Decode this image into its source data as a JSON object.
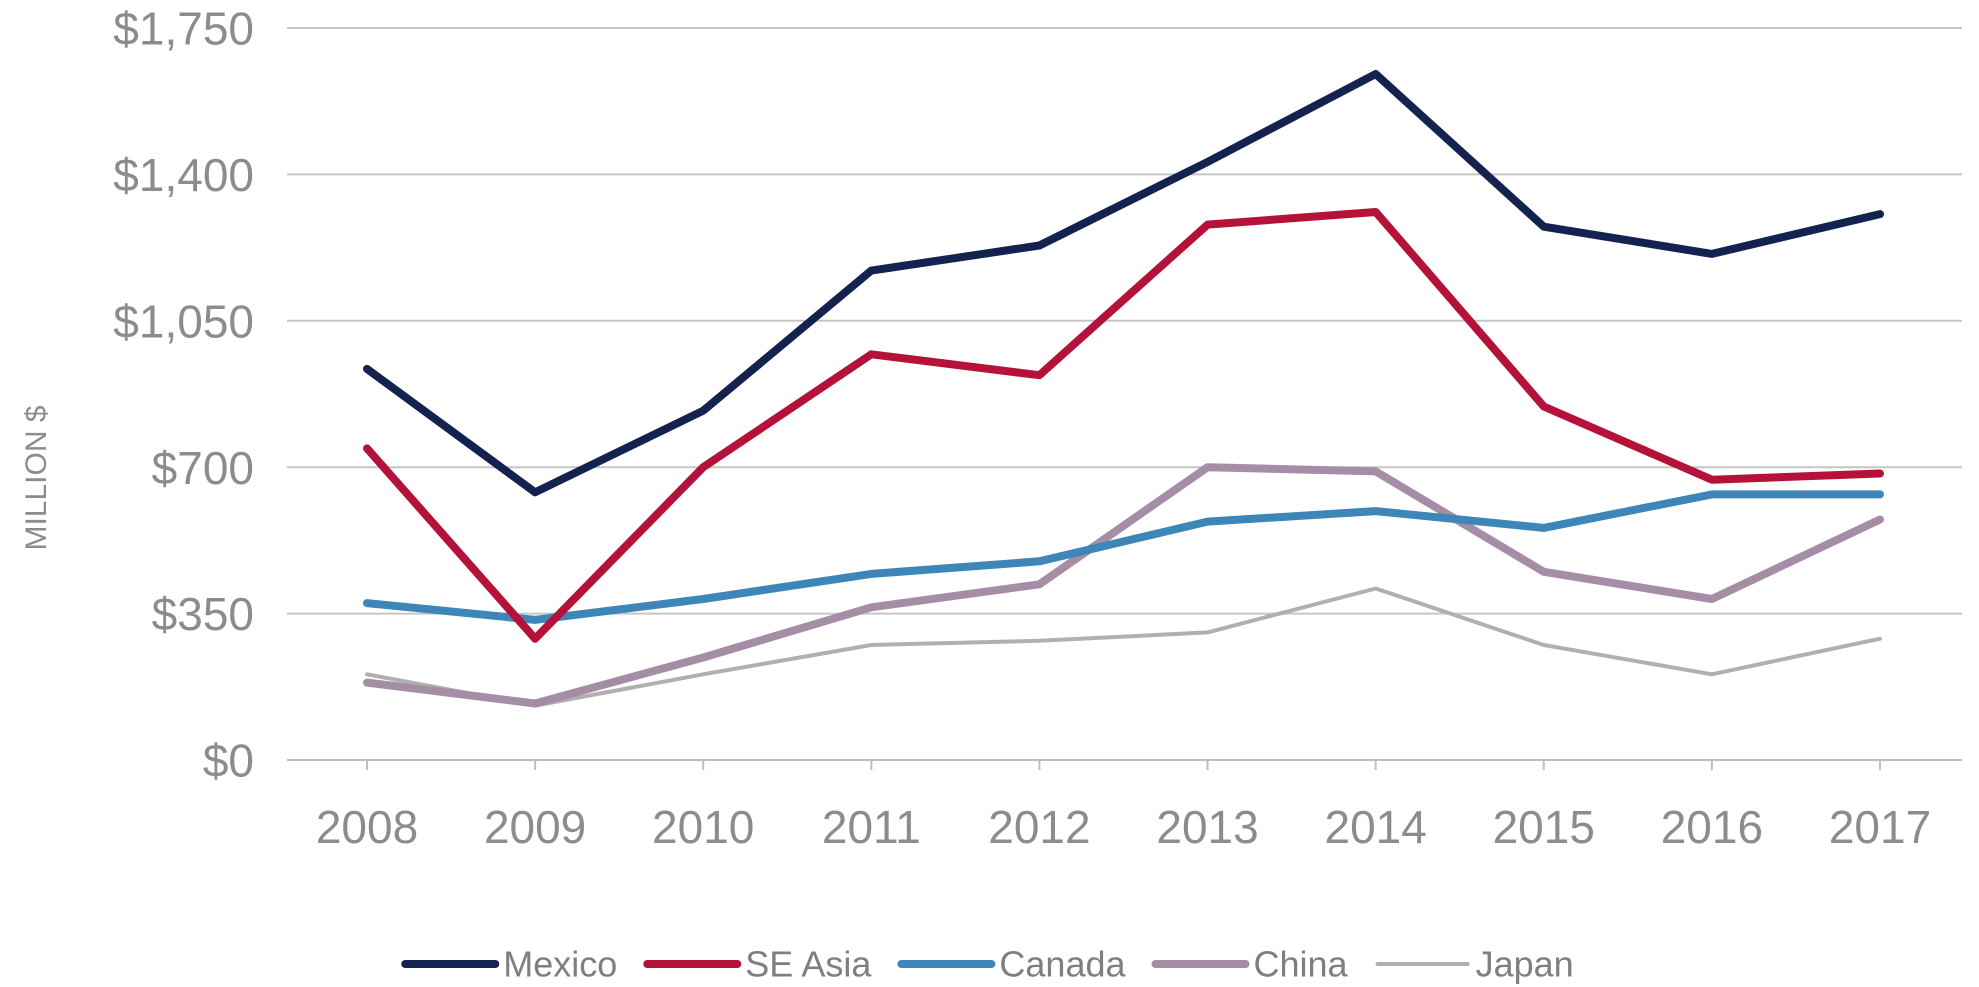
{
  "chart_data": {
    "type": "line",
    "title": "",
    "xlabel": "",
    "ylabel": "MILLION $",
    "categories": [
      "2008",
      "2009",
      "2010",
      "2011",
      "2012",
      "2013",
      "2014",
      "2015",
      "2016",
      "2017"
    ],
    "ylim": [
      0,
      1750
    ],
    "yticks": [
      0,
      350,
      700,
      1050,
      1400,
      1750
    ],
    "ytick_labels": [
      "$0",
      "$350",
      "$700",
      "$1,050",
      "$1,400",
      "$1,750"
    ],
    "grid": "horizontal",
    "legend_position": "bottom",
    "series": [
      {
        "name": "Mexico",
        "color": "#13224f",
        "width": "thick",
        "values": [
          935,
          640,
          835,
          1170,
          1230,
          1430,
          1640,
          1275,
          1210,
          1305
        ]
      },
      {
        "name": "SE Asia",
        "color": "#b41238",
        "width": "thick",
        "values": [
          745,
          290,
          700,
          970,
          920,
          1280,
          1310,
          845,
          670,
          685
        ]
      },
      {
        "name": "Canada",
        "color": "#3f86b8",
        "width": "thick",
        "values": [
          375,
          335,
          385,
          445,
          475,
          570,
          595,
          555,
          635,
          635
        ]
      },
      {
        "name": "China",
        "color": "#a68da6",
        "width": "thick",
        "values": [
          185,
          135,
          245,
          365,
          420,
          700,
          690,
          450,
          385,
          575
        ]
      },
      {
        "name": "Japan",
        "color": "#b0b0b0",
        "width": "thin",
        "values": [
          205,
          130,
          205,
          275,
          285,
          305,
          410,
          275,
          205,
          290
        ]
      }
    ]
  }
}
